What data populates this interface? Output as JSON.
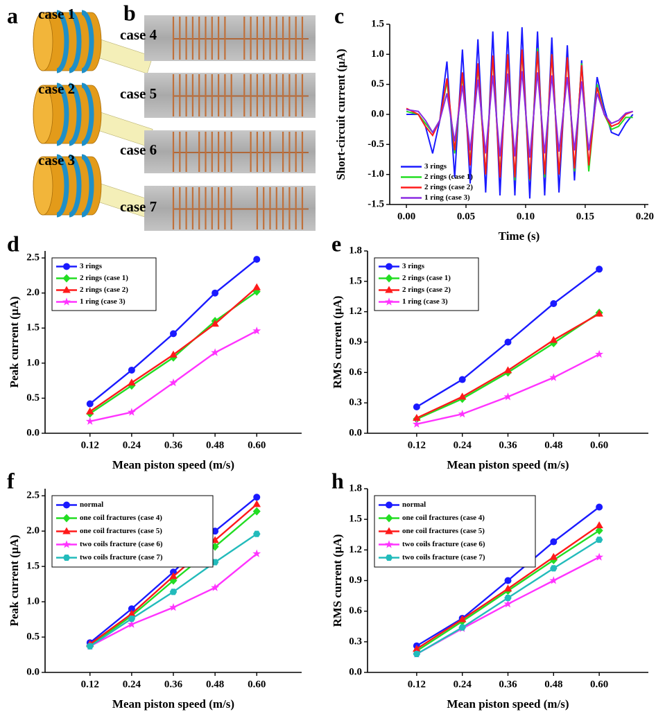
{
  "figure": {
    "panel_a": {
      "panel_label": "a",
      "cases": [
        "case 1",
        "case 2",
        "case 3"
      ]
    },
    "panel_b": {
      "panel_label": "b",
      "cases": [
        "case 4",
        "case 5",
        "case 6",
        "case 7"
      ]
    }
  },
  "chart_data": [
    {
      "type": "line",
      "panel_label": "c",
      "x_label": "Time (s)",
      "y_label": "Short-circuit current (μA)",
      "x": [
        0,
        0.01,
        0.016,
        0.022,
        0.028,
        0.034,
        0.0405,
        0.047,
        0.0535,
        0.06,
        0.0665,
        0.0725,
        0.0785,
        0.085,
        0.091,
        0.097,
        0.1035,
        0.11,
        0.116,
        0.122,
        0.128,
        0.135,
        0.141,
        0.147,
        0.153,
        0.16,
        0.166,
        0.172,
        0.178,
        0.184,
        0.19
      ],
      "series": [
        {
          "name": "3 rings",
          "color": "#1a1aff",
          "values": [
            0,
            0,
            -0.2,
            -0.65,
            -0.1,
            0.88,
            -1.05,
            1.08,
            -1.15,
            1.25,
            -1.3,
            1.38,
            -1.35,
            1.38,
            -1.35,
            1.45,
            -1.4,
            1.38,
            -1.35,
            1.28,
            -1.3,
            1.15,
            -1.1,
            0.9,
            -0.9,
            0.62,
            0.1,
            -0.3,
            -0.35,
            -0.15,
            0
          ]
        },
        {
          "name": "2 rings (case 1)",
          "color": "#22dd22",
          "values": [
            0.05,
            0,
            -0.15,
            -0.3,
            -0.1,
            0.55,
            -0.65,
            0.65,
            -0.8,
            0.8,
            -1.0,
            0.95,
            -1.0,
            1.0,
            -1.1,
            1.05,
            -1.1,
            1.1,
            -1.05,
            1.0,
            -1.0,
            0.95,
            -0.95,
            0.85,
            -0.95,
            0.5,
            0,
            -0.25,
            -0.2,
            -0.05,
            -0.05
          ]
        },
        {
          "name": "2 rings (case 2)",
          "color": "#ff1a1a",
          "values": [
            0.1,
            0,
            -0.2,
            -0.35,
            -0.1,
            0.6,
            -0.6,
            0.7,
            -0.85,
            0.85,
            -1.0,
            0.98,
            -1.05,
            1.0,
            -1.05,
            1.08,
            -1.08,
            1.05,
            -1.0,
            1.0,
            -1.0,
            0.95,
            -0.9,
            0.82,
            -0.85,
            0.45,
            0,
            -0.2,
            -0.15,
            0,
            0.05
          ]
        },
        {
          "name": "1 ring  (case 3)",
          "color": "#8a2be2",
          "values": [
            0.08,
            0.05,
            -0.1,
            -0.3,
            -0.1,
            0.35,
            -0.45,
            0.48,
            -0.6,
            0.58,
            -0.65,
            0.65,
            -0.7,
            0.68,
            -0.7,
            0.72,
            -0.72,
            0.7,
            -0.65,
            0.65,
            -0.62,
            0.62,
            -0.6,
            0.55,
            -0.6,
            0.35,
            0,
            -0.15,
            -0.1,
            0.02,
            0.05
          ]
        }
      ],
      "xlim": [
        -0.014,
        0.203
      ],
      "xticks": [
        {
          "value": 0,
          "label": "0.00"
        },
        0.05,
        {
          "value": 0.1,
          "label": "0.10"
        },
        0.15,
        {
          "value": 0.2,
          "label": "0.20"
        }
      ],
      "ylim": [
        -1.5,
        1.5
      ],
      "yticks": [
        -1.5,
        {
          "value": -1,
          "label": "-1.0"
        },
        -0.5,
        {
          "value": 0,
          "label": "0.0"
        },
        0.5,
        {
          "value": 1,
          "label": "1.0"
        },
        1.5
      ],
      "legend": "lower left",
      "legend_frame": false
    },
    {
      "type": "line",
      "panel_label": "d",
      "x_label": "Mean piston speed (m/s)",
      "y_label": "Peak current (μA)",
      "categories": [
        "0.12",
        "0.24",
        "0.36",
        "0.48",
        "0.60"
      ],
      "series": [
        {
          "name": "3 rings",
          "color": "#1a1aff",
          "marker": "circle",
          "values": [
            0.42,
            0.9,
            1.42,
            2.0,
            2.48
          ]
        },
        {
          "name": "2 rings (case 1)",
          "color": "#22dd22",
          "marker": "diamond",
          "values": [
            0.28,
            0.68,
            1.08,
            1.6,
            2.02
          ]
        },
        {
          "name": "2 rings (case 2)",
          "color": "#ff1a1a",
          "marker": "triangle",
          "values": [
            0.31,
            0.72,
            1.12,
            1.56,
            2.08
          ]
        },
        {
          "name": "1 ring  (case 3)",
          "color": "#ff33ff",
          "marker": "star",
          "values": [
            0.17,
            0.3,
            0.72,
            1.15,
            1.46
          ]
        }
      ],
      "ylim": [
        0,
        2.6
      ],
      "yticks": [
        {
          "value": 0,
          "label": "0.0"
        },
        0.5,
        {
          "value": 1,
          "label": "1.0"
        },
        1.5,
        {
          "value": 2,
          "label": "2.0"
        },
        2.5
      ],
      "legend": "upper left",
      "legend_frame": true
    },
    {
      "type": "line",
      "panel_label": "e",
      "x_label": "Mean piston speed (m/s)",
      "y_label": "RMS current (μA)",
      "categories": [
        "0.12",
        "0.24",
        "0.36",
        "0.48",
        "0.60"
      ],
      "series": [
        {
          "name": "3 rings",
          "color": "#1a1aff",
          "marker": "circle",
          "values": [
            0.26,
            0.53,
            0.9,
            1.28,
            1.62
          ]
        },
        {
          "name": "2 rings (case 1)",
          "color": "#22dd22",
          "marker": "diamond",
          "values": [
            0.14,
            0.34,
            0.6,
            0.89,
            1.19
          ]
        },
        {
          "name": "2 rings (case 2)",
          "color": "#ff1a1a",
          "marker": "triangle",
          "values": [
            0.15,
            0.36,
            0.62,
            0.92,
            1.18
          ]
        },
        {
          "name": "1 ring  (case 3)",
          "color": "#ff33ff",
          "marker": "star",
          "values": [
            0.09,
            0.19,
            0.36,
            0.55,
            0.78
          ]
        }
      ],
      "ylim": [
        0,
        1.8
      ],
      "yticks": [
        {
          "value": 0,
          "label": "0.0"
        },
        0.3,
        0.6,
        0.9,
        1.2,
        1.5,
        1.8
      ],
      "legend": "upper left",
      "legend_frame": true
    },
    {
      "type": "line",
      "panel_label": "f",
      "x_label": "Mean piston speed (m/s)",
      "y_label": "Peak current (μA)",
      "categories": [
        "0.12",
        "0.24",
        "0.36",
        "0.48",
        "0.60"
      ],
      "series": [
        {
          "name": "normal",
          "color": "#1a1aff",
          "marker": "circle",
          "values": [
            0.42,
            0.9,
            1.42,
            2.0,
            2.48
          ]
        },
        {
          "name": "one coil fractures (case 4)",
          "color": "#22dd22",
          "marker": "diamond",
          "values": [
            0.38,
            0.8,
            1.3,
            1.78,
            2.28
          ]
        },
        {
          "name": "one coil fractures (case 5)",
          "color": "#ff1a1a",
          "marker": "triangle",
          "values": [
            0.4,
            0.83,
            1.36,
            1.87,
            2.38
          ]
        },
        {
          "name": "two coils fracture (case 6)",
          "color": "#ff33ff",
          "marker": "star",
          "values": [
            0.37,
            0.68,
            0.92,
            1.2,
            1.68
          ]
        },
        {
          "name": "two coils fracture (case 7)",
          "color": "#22bbbb",
          "marker": "hexagon",
          "values": [
            0.37,
            0.76,
            1.14,
            1.56,
            1.96
          ]
        }
      ],
      "ylim": [
        0,
        2.6
      ],
      "yticks": [
        {
          "value": 0,
          "label": "0.0"
        },
        0.5,
        {
          "value": 1,
          "label": "1.0"
        },
        1.5,
        {
          "value": 2,
          "label": "2.0"
        },
        2.5
      ],
      "legend": "upper left",
      "legend_frame": true
    },
    {
      "type": "line",
      "panel_label": "h",
      "x_label": "Mean piston speed (m/s)",
      "y_label": "RMS current (μA)",
      "categories": [
        "0.12",
        "0.24",
        "0.36",
        "0.48",
        "0.60"
      ],
      "series": [
        {
          "name": "normal",
          "color": "#1a1aff",
          "marker": "circle",
          "values": [
            0.26,
            0.53,
            0.9,
            1.28,
            1.62
          ]
        },
        {
          "name": "one coil fractures (case 4)",
          "color": "#22dd22",
          "marker": "diamond",
          "values": [
            0.21,
            0.5,
            0.8,
            1.1,
            1.39
          ]
        },
        {
          "name": "one coil fractures (case 5)",
          "color": "#ff1a1a",
          "marker": "triangle",
          "values": [
            0.23,
            0.52,
            0.82,
            1.13,
            1.44
          ]
        },
        {
          "name": "two coils fracture (case 6)",
          "color": "#ff33ff",
          "marker": "star",
          "values": [
            0.18,
            0.43,
            0.67,
            0.9,
            1.13
          ]
        },
        {
          "name": "two coils fracture (case 7)",
          "color": "#22bbbb",
          "marker": "hexagon",
          "values": [
            0.18,
            0.44,
            0.73,
            1.02,
            1.3
          ]
        }
      ],
      "ylim": [
        0,
        1.8
      ],
      "yticks": [
        {
          "value": 0,
          "label": "0.0"
        },
        0.3,
        0.6,
        0.9,
        1.2,
        1.5,
        1.8
      ],
      "legend": "upper left",
      "legend_frame": true
    }
  ]
}
